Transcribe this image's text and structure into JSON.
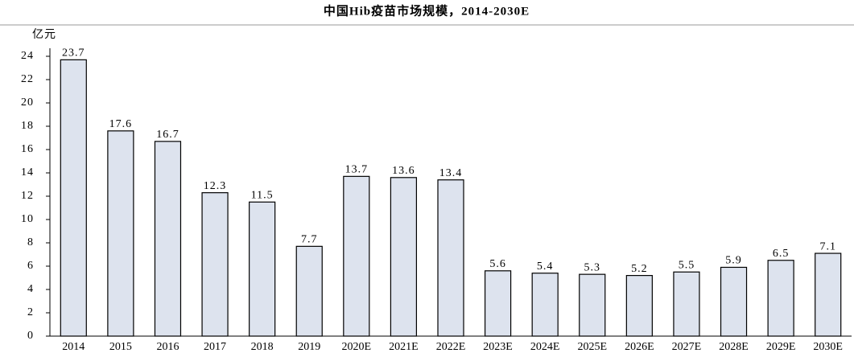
{
  "chart_data": {
    "type": "bar",
    "title": "中国Hib疫苗市场规模，2014-2030E",
    "y_label": "亿元",
    "categories": [
      "2014",
      "2015",
      "2016",
      "2017",
      "2018",
      "2019",
      "2020E",
      "2021E",
      "2022E",
      "2023E",
      "2024E",
      "2025E",
      "2026E",
      "2027E",
      "2028E",
      "2029E",
      "2030E"
    ],
    "values": [
      23.7,
      17.6,
      16.7,
      12.3,
      11.5,
      7.7,
      13.7,
      13.6,
      13.4,
      5.6,
      5.4,
      5.3,
      5.2,
      5.5,
      5.9,
      6.5,
      7.1
    ],
    "color": "#dde3ee",
    "ylim": [
      0,
      24
    ],
    "yticks": [
      0,
      2,
      4,
      6,
      8,
      10,
      12,
      14,
      16,
      18,
      20,
      22,
      24
    ],
    "grid": false
  }
}
